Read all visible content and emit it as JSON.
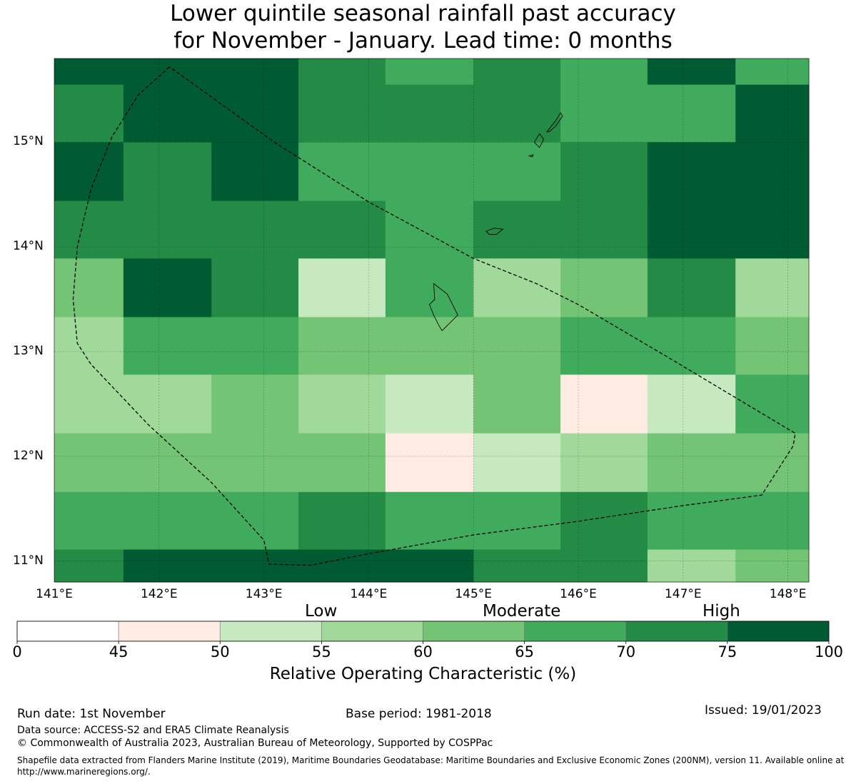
{
  "title": {
    "line1": "Lower quintile seasonal rainfall past accuracy",
    "line2": "for November - January. Lead time: 0 months"
  },
  "map": {
    "lon_range": [
      141.0,
      148.2
    ],
    "lat_range": [
      10.8,
      15.8
    ],
    "x_ticks": [
      {
        "value": 141,
        "label": "141°E"
      },
      {
        "value": 142,
        "label": "142°E"
      },
      {
        "value": 143,
        "label": "143°E"
      },
      {
        "value": 144,
        "label": "144°E"
      },
      {
        "value": 145,
        "label": "145°E"
      },
      {
        "value": 146,
        "label": "146°E"
      },
      {
        "value": 147,
        "label": "147°E"
      },
      {
        "value": 148,
        "label": "148°E"
      }
    ],
    "y_ticks": [
      {
        "value": 15,
        "label": "15°N"
      },
      {
        "value": 14,
        "label": "14°N"
      },
      {
        "value": 13,
        "label": "13°N"
      },
      {
        "value": 12,
        "label": "12°N"
      },
      {
        "value": 11,
        "label": "11°N"
      }
    ],
    "grid_columns_lon": [
      141.0,
      141.66,
      142.5,
      143.33,
      144.16,
      145.0,
      145.83,
      146.66,
      147.5,
      148.2
    ],
    "grid_rows_lat": [
      15.8,
      15.55,
      15.0,
      14.44,
      13.89,
      13.33,
      12.78,
      12.22,
      11.66,
      11.11,
      10.8
    ],
    "roc_bins": [
      [
        75,
        75,
        75,
        70,
        65,
        70,
        65,
        75,
        65
      ],
      [
        70,
        75,
        75,
        70,
        70,
        70,
        65,
        65,
        75
      ],
      [
        75,
        70,
        75,
        65,
        65,
        65,
        70,
        75,
        75
      ],
      [
        70,
        70,
        70,
        70,
        65,
        70,
        70,
        75,
        75
      ],
      [
        60,
        75,
        70,
        50,
        65,
        55,
        60,
        70,
        55
      ],
      [
        55,
        65,
        65,
        60,
        60,
        60,
        65,
        65,
        60
      ],
      [
        55,
        55,
        60,
        55,
        50,
        60,
        45,
        50,
        65
      ],
      [
        60,
        60,
        60,
        60,
        45,
        50,
        55,
        60,
        60
      ],
      [
        65,
        65,
        65,
        70,
        65,
        65,
        70,
        65,
        65
      ],
      [
        70,
        75,
        75,
        75,
        75,
        70,
        70,
        55,
        60
      ]
    ],
    "eez_boundary": [
      [
        142.1,
        15.72
      ],
      [
        141.8,
        15.45
      ],
      [
        141.55,
        15.05
      ],
      [
        141.35,
        14.55
      ],
      [
        141.22,
        14.0
      ],
      [
        141.18,
        13.5
      ],
      [
        141.22,
        13.08
      ],
      [
        141.35,
        12.88
      ],
      [
        141.9,
        12.3
      ],
      [
        142.5,
        11.75
      ],
      [
        143.0,
        11.2
      ],
      [
        143.05,
        10.97
      ],
      [
        143.45,
        10.96
      ],
      [
        144.0,
        11.07
      ],
      [
        145.0,
        11.25
      ],
      [
        146.0,
        11.38
      ],
      [
        147.0,
        11.53
      ],
      [
        147.75,
        11.63
      ],
      [
        148.05,
        12.1
      ],
      [
        148.07,
        12.22
      ],
      [
        146.9,
        12.92
      ],
      [
        146.0,
        13.45
      ],
      [
        145.6,
        13.65
      ],
      [
        145.0,
        13.89
      ],
      [
        144.0,
        14.43
      ],
      [
        143.1,
        15.0
      ],
      [
        142.1,
        15.72
      ]
    ],
    "islands": [
      {
        "name": "Guam",
        "points": [
          [
            144.62,
            13.65
          ],
          [
            144.75,
            13.55
          ],
          [
            144.85,
            13.35
          ],
          [
            144.75,
            13.25
          ],
          [
            144.7,
            13.2
          ],
          [
            144.67,
            13.25
          ],
          [
            144.62,
            13.35
          ],
          [
            144.58,
            13.45
          ],
          [
            144.63,
            13.5
          ],
          [
            144.62,
            13.65
          ]
        ]
      },
      {
        "name": "Rota",
        "points": [
          [
            145.12,
            14.15
          ],
          [
            145.2,
            14.18
          ],
          [
            145.28,
            14.17
          ],
          [
            145.22,
            14.12
          ],
          [
            145.15,
            14.12
          ],
          [
            145.12,
            14.15
          ]
        ]
      },
      {
        "name": "Tinian",
        "points": [
          [
            145.58,
            15.0
          ],
          [
            145.63,
            15.08
          ],
          [
            145.67,
            15.03
          ],
          [
            145.63,
            14.95
          ],
          [
            145.58,
            15.0
          ]
        ]
      },
      {
        "name": "Saipan",
        "points": [
          [
            145.7,
            15.1
          ],
          [
            145.78,
            15.2
          ],
          [
            145.83,
            15.28
          ],
          [
            145.85,
            15.25
          ],
          [
            145.78,
            15.15
          ],
          [
            145.72,
            15.1
          ],
          [
            145.7,
            15.1
          ]
        ]
      },
      {
        "name": "Aguijan",
        "points": [
          [
            145.53,
            14.87
          ],
          [
            145.57,
            14.88
          ],
          [
            145.56,
            14.86
          ],
          [
            145.53,
            14.87
          ]
        ]
      }
    ]
  },
  "colorbar": {
    "bounds": [
      0,
      45,
      50,
      55,
      60,
      65,
      70,
      75,
      100
    ],
    "tick_labels": [
      "0",
      "45",
      "50",
      "55",
      "60",
      "65",
      "70",
      "75",
      "100"
    ],
    "colors": [
      "#ffffff",
      "#feece3",
      "#c7e9c0",
      "#a1d99b",
      "#74c476",
      "#41ab5d",
      "#238b45",
      "#005a32"
    ],
    "categories": [
      "Low",
      "Moderate",
      "High"
    ],
    "title": "Relative Operating Characteristic (%)"
  },
  "footer": {
    "run_date": "Run date: 1st November",
    "base_period": "Base period: 1981-2018",
    "issued": "Issued: 19/01/2023",
    "data_source": "Data source: ACCESS-S2 and ERA5 Climate Reanalysis",
    "copyright": "© Commonwealth of Australia 2023, Australian Bureau of Meteorology, Supported by COSPPac",
    "shapefile": "Shapefile data extracted from Flanders Marine Institute (2019), Maritime Boundaries Geodatabase: Maritime Boundaries and Exclusive Economic Zones (200NM), version 11. Available online at http://www.marineregions.org/."
  }
}
